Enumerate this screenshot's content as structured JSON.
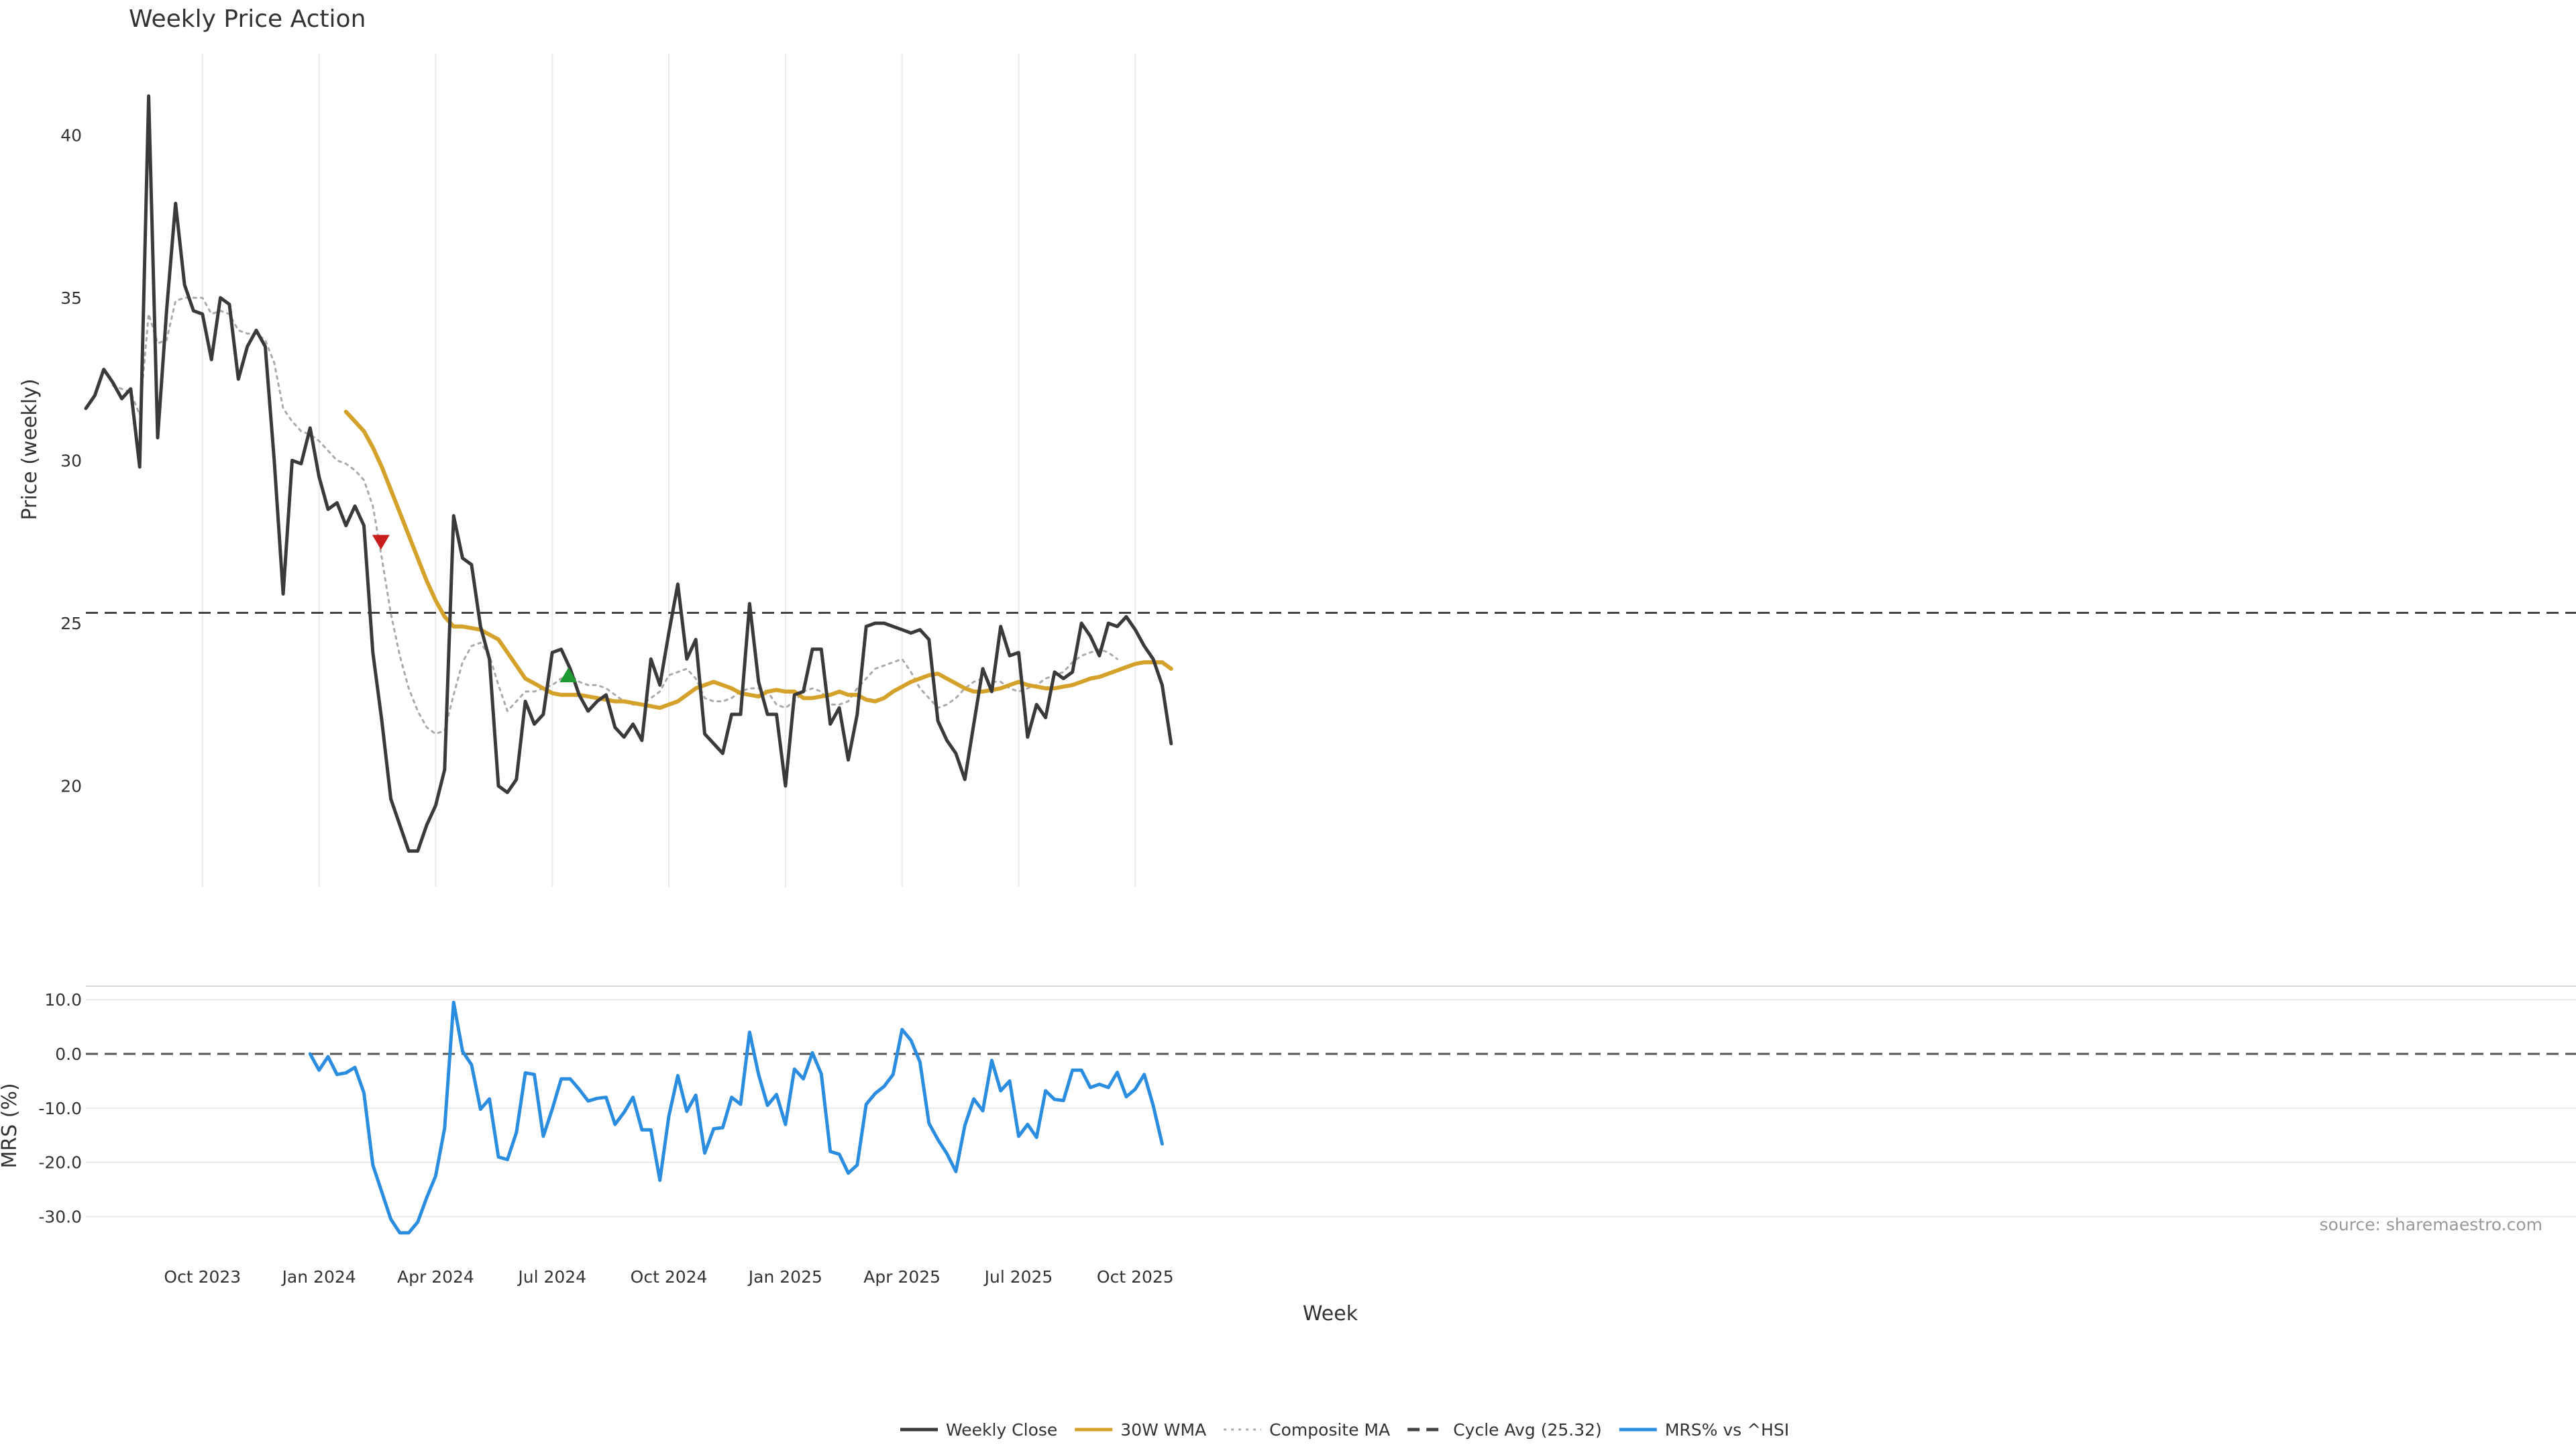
{
  "chart_data": {
    "type": "line",
    "title": "Weekly Price Action",
    "xlabel": "Week",
    "x_ticks": [
      "Oct 2023",
      "Jan 2024",
      "Apr 2024",
      "Jul 2024",
      "Oct 2024",
      "Jan 2025",
      "Apr 2025",
      "Jul 2025",
      "Oct 2025"
    ],
    "x_tick_weeks": [
      13,
      26,
      39,
      52,
      65,
      78,
      91,
      104,
      117
    ],
    "price_panel": {
      "ylabel": "Price (weekly)",
      "yticks": [
        20,
        25,
        30,
        35,
        40
      ],
      "ylim": [
        16.9,
        42.5
      ],
      "cycle_avg_value": 25.32,
      "series": [
        {
          "name": "Weekly Close",
          "color": "#3a3a3a",
          "style": "solid",
          "start_week": 0,
          "values": [
            31.6,
            32.0,
            32.8,
            32.4,
            31.9,
            32.2,
            29.8,
            41.2,
            30.7,
            34.6,
            37.9,
            35.4,
            34.6,
            34.5,
            33.1,
            35.0,
            34.8,
            32.5,
            33.5,
            34.0,
            33.5,
            30.0,
            25.9,
            30.0,
            29.9,
            31.0,
            29.5,
            28.5,
            28.7,
            28.0,
            28.6,
            28.0,
            24.1,
            22.0,
            19.6,
            18.8,
            18.0,
            18.0,
            18.8,
            19.4,
            20.5,
            28.3,
            27.0,
            26.8,
            24.9,
            23.9,
            20.0,
            19.8,
            20.2,
            22.6,
            21.9,
            22.2,
            24.1,
            24.2,
            23.6,
            22.8,
            22.3,
            22.6,
            22.8,
            21.8,
            21.5,
            21.9,
            21.4,
            23.9,
            23.1,
            24.7,
            26.2,
            23.9,
            24.5,
            21.6,
            21.3,
            21.0,
            22.2,
            22.2,
            25.6,
            23.2,
            22.2,
            22.2,
            20.0,
            22.8,
            22.9,
            24.2,
            24.2,
            21.9,
            22.4,
            20.8,
            22.2,
            24.9,
            25.0,
            25.0,
            24.9,
            24.8,
            24.7,
            24.8,
            24.5,
            22.0,
            21.4,
            21.0,
            20.2,
            21.9,
            23.6,
            22.9,
            24.9,
            24.0,
            24.1,
            21.5,
            22.5,
            22.1,
            23.5,
            23.3,
            23.5,
            25.0,
            24.6,
            24.0,
            25.0,
            24.9,
            25.2,
            24.8,
            24.3,
            23.9,
            23.1,
            21.3
          ]
        },
        {
          "name": "30W WMA",
          "color": "#d4a12a",
          "style": "solid",
          "start_week": 29,
          "values": [
            31.5,
            31.2,
            30.9,
            30.4,
            29.8,
            29.1,
            28.4,
            27.7,
            27.0,
            26.3,
            25.7,
            25.2,
            24.9,
            24.9,
            24.85,
            24.8,
            24.65,
            24.5,
            24.1,
            23.7,
            23.3,
            23.15,
            23.0,
            22.85,
            22.8,
            22.8,
            22.8,
            22.75,
            22.7,
            22.65,
            22.6,
            22.6,
            22.55,
            22.5,
            22.45,
            22.4,
            22.5,
            22.6,
            22.8,
            23.0,
            23.1,
            23.2,
            23.1,
            23.0,
            22.85,
            22.8,
            22.75,
            22.9,
            22.95,
            22.9,
            22.9,
            22.7,
            22.7,
            22.75,
            22.8,
            22.9,
            22.8,
            22.8,
            22.65,
            22.6,
            22.7,
            22.9,
            23.05,
            23.2,
            23.3,
            23.4,
            23.45,
            23.3,
            23.15,
            23.0,
            22.9,
            22.9,
            22.95,
            23.0,
            23.1,
            23.2,
            23.1,
            23.05,
            23.0,
            23.0,
            23.05,
            23.1,
            23.2,
            23.3,
            23.35,
            23.45,
            23.55,
            23.65,
            23.75,
            23.8,
            23.8,
            23.8,
            23.6
          ]
        },
        {
          "name": "Composite MA",
          "color": "#aaaaaa",
          "style": "dotted",
          "start_week": 3,
          "values": [
            32.3,
            32.2,
            32.1,
            31.4,
            34.5,
            33.6,
            33.7,
            34.9,
            35.0,
            35.0,
            35.0,
            34.5,
            34.6,
            34.5,
            34.0,
            33.9,
            33.9,
            33.7,
            33.0,
            31.6,
            31.2,
            30.9,
            30.8,
            30.6,
            30.3,
            30.0,
            29.9,
            29.7,
            29.4,
            28.6,
            27.0,
            25.3,
            24.0,
            23.0,
            22.3,
            21.8,
            21.6,
            21.7,
            22.8,
            23.8,
            24.3,
            24.4,
            24.0,
            23.1,
            22.3,
            22.6,
            22.9,
            22.9,
            23.0,
            23.1,
            23.3,
            23.4,
            23.2,
            23.1,
            23.1,
            23.0,
            22.8,
            22.6,
            22.5,
            22.5,
            22.7,
            22.9,
            23.4,
            23.5,
            23.6,
            23.3,
            22.7,
            22.6,
            22.6,
            22.7,
            22.9,
            23.0,
            23.0,
            22.9,
            22.5,
            22.4,
            22.6,
            22.9,
            23.0,
            22.9,
            22.5,
            22.5,
            22.6,
            23.0,
            23.3,
            23.6,
            23.7,
            23.8,
            23.9,
            23.5,
            23.0,
            22.7,
            22.4,
            22.5,
            22.7,
            23.0,
            23.2,
            23.3,
            23.2,
            23.2,
            23.0,
            22.9,
            23.0,
            23.1,
            23.3,
            23.4,
            23.5,
            23.8,
            24.0,
            24.1,
            24.2,
            24.1,
            23.9
          ]
        }
      ],
      "markers": [
        {
          "type": "sell",
          "shape": "down-triangle",
          "color": "#c81e1e",
          "week": 32.9,
          "value": 27.5
        },
        {
          "type": "buy",
          "shape": "up-triangle",
          "color": "#1f9a32",
          "week": 53.8,
          "value": 23.4
        }
      ]
    },
    "mrs_panel": {
      "ylabel": "MRS (%)",
      "yticks": [
        "10.0",
        "0.0",
        "-10.0",
        "-20.0",
        "-30.0"
      ],
      "ytick_values": [
        10,
        0,
        -10,
        -20,
        -30
      ],
      "ylim": [
        -36,
        12.5
      ],
      "zero_line": true,
      "series": [
        {
          "name": "MRS% vs ^HSI",
          "color": "#2b8de0",
          "style": "solid",
          "start_week": 25,
          "values": [
            0,
            -3,
            -0.5,
            -3.8,
            -3.5,
            -2.5,
            -7.2,
            -20.5,
            -25.5,
            -30.5,
            -33,
            -33,
            -31,
            -26.5,
            -22.5,
            -13.7,
            9.5,
            0.5,
            -2,
            -10.2,
            -8.3,
            -19,
            -19.5,
            -14.5,
            -3.5,
            -3.8,
            -15.2,
            -10.2,
            -4.6,
            -4.6,
            -6.5,
            -8.7,
            -8.2,
            -8,
            -13,
            -10.8,
            -8,
            -14,
            -14,
            -23.3,
            -11.5,
            -4,
            -10.6,
            -7.6,
            -18.3,
            -13.8,
            -13.6,
            -8,
            -9.3,
            4,
            -3.8,
            -9.5,
            -7.5,
            -13,
            -2.8,
            -4.6,
            0.2,
            -3.7,
            -18,
            -18.5,
            -22,
            -20.5,
            -9.3,
            -7.3,
            -6,
            -3.8,
            4.5,
            2.5,
            -1.5,
            -12.8,
            -15.8,
            -18.4,
            -21.7,
            -13.2,
            -8.3,
            -10.5,
            -1.2,
            -6.8,
            -5,
            -15.2,
            -13,
            -15.4,
            -6.8,
            -8.4,
            -8.6,
            -3,
            -3,
            -6.2,
            -5.6,
            -6.2,
            -3.4,
            -7.9,
            -6.5,
            -3.8,
            -9.5,
            -16.6
          ]
        }
      ]
    },
    "legend": {
      "placement": "bottom-center",
      "entries": [
        {
          "label": "Weekly Close",
          "color": "#3a3a3a",
          "style": "solid"
        },
        {
          "label": "30W WMA",
          "color": "#d4a12a",
          "style": "solid"
        },
        {
          "label": "Composite MA",
          "color": "#aaaaaa",
          "style": "dotted"
        },
        {
          "label": "Cycle Avg (25.32)",
          "color": "#444444",
          "style": "dashed"
        },
        {
          "label": "MRS% vs ^HSI",
          "color": "#2b8de0",
          "style": "solid"
        }
      ]
    },
    "source_note": "source: sharemaestro.com",
    "grid": true
  }
}
